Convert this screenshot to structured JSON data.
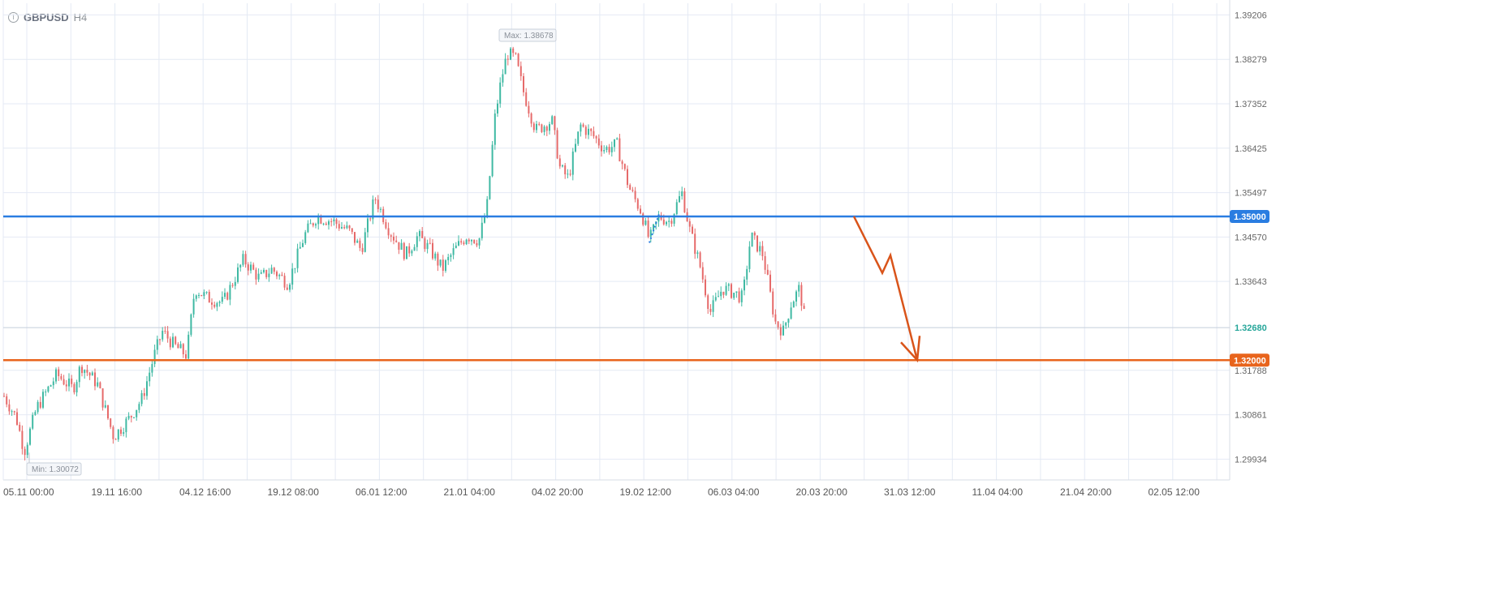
{
  "header": {
    "symbol": "GBPUSD",
    "timeframe": "H4",
    "icon": "info-icon"
  },
  "chart_data": {
    "type": "candlestick",
    "symbol": "GBPUSD",
    "timeframe": "H4",
    "ylim": [
      1.295,
      1.3945
    ],
    "y_ticks": [
      "1.39206",
      "1.38279",
      "1.37352",
      "1.36425",
      "1.35497",
      "1.34570",
      "1.33643",
      "1.32680",
      "1.31788",
      "1.30861",
      "1.29934"
    ],
    "x_ticks": [
      "05.11 00:00",
      "19.11 16:00",
      "04.12 16:00",
      "19.12 08:00",
      "06.01 12:00",
      "21.01 04:00",
      "04.02 20:00",
      "19.02 12:00",
      "06.03 04:00",
      "20.03 20:00",
      "31.03 12:00",
      "11.04 04:00",
      "21.04 20:00",
      "02.05 12:00"
    ],
    "max_label": "Max: 1.38678",
    "min_label": "Min: 1.30072",
    "current_price": "1.32680",
    "levels": [
      {
        "label": "1.35000",
        "value": 1.35,
        "color": "#2a7de1"
      },
      {
        "label": "1.32000",
        "value": 1.32,
        "color": "#e8641c"
      }
    ],
    "up_color": "#3fb9a3",
    "down_color": "#e66a6a",
    "forecast_color": "#d9541a",
    "path_points": [
      [
        0,
        1.314
      ],
      [
        20,
        1.308
      ],
      [
        30,
        1.301
      ],
      [
        45,
        1.31
      ],
      [
        70,
        1.317
      ],
      [
        90,
        1.314
      ],
      [
        100,
        1.319
      ],
      [
        120,
        1.315
      ],
      [
        140,
        1.304
      ],
      [
        160,
        1.308
      ],
      [
        175,
        1.312
      ],
      [
        190,
        1.321
      ],
      [
        200,
        1.326
      ],
      [
        215,
        1.323
      ],
      [
        230,
        1.321
      ],
      [
        240,
        1.335
      ],
      [
        255,
        1.333
      ],
      [
        275,
        1.332
      ],
      [
        300,
        1.341
      ],
      [
        320,
        1.337
      ],
      [
        335,
        1.339
      ],
      [
        355,
        1.336
      ],
      [
        375,
        1.346
      ],
      [
        390,
        1.35
      ],
      [
        410,
        1.349
      ],
      [
        430,
        1.347
      ],
      [
        445,
        1.343
      ],
      [
        462,
        1.354
      ],
      [
        480,
        1.347
      ],
      [
        500,
        1.342
      ],
      [
        515,
        1.346
      ],
      [
        530,
        1.343
      ],
      [
        545,
        1.339
      ],
      [
        560,
        1.343
      ],
      [
        575,
        1.346
      ],
      [
        590,
        1.345
      ],
      [
        600,
        1.352
      ],
      [
        610,
        1.371
      ],
      [
        618,
        1.379
      ],
      [
        625,
        1.384
      ],
      [
        635,
        1.383
      ],
      [
        645,
        1.376
      ],
      [
        660,
        1.368
      ],
      [
        680,
        1.37
      ],
      [
        690,
        1.36
      ],
      [
        700,
        1.358
      ],
      [
        715,
        1.369
      ],
      [
        730,
        1.367
      ],
      [
        745,
        1.364
      ],
      [
        760,
        1.365
      ],
      [
        775,
        1.356
      ],
      [
        790,
        1.351
      ],
      [
        800,
        1.345
      ],
      [
        812,
        1.35
      ],
      [
        825,
        1.349
      ],
      [
        840,
        1.355
      ],
      [
        850,
        1.347
      ],
      [
        862,
        1.34
      ],
      [
        875,
        1.33
      ],
      [
        890,
        1.335
      ],
      [
        905,
        1.334
      ],
      [
        915,
        1.333
      ],
      [
        925,
        1.346
      ],
      [
        940,
        1.342
      ],
      [
        955,
        1.328
      ],
      [
        965,
        1.326
      ],
      [
        975,
        1.332
      ],
      [
        985,
        1.335
      ],
      [
        993,
        1.3268
      ]
    ],
    "forecast_points": [
      [
        1052,
        1.35
      ],
      [
        1087,
        1.3382
      ],
      [
        1097,
        1.3419
      ],
      [
        1130,
        1.32
      ]
    ]
  }
}
